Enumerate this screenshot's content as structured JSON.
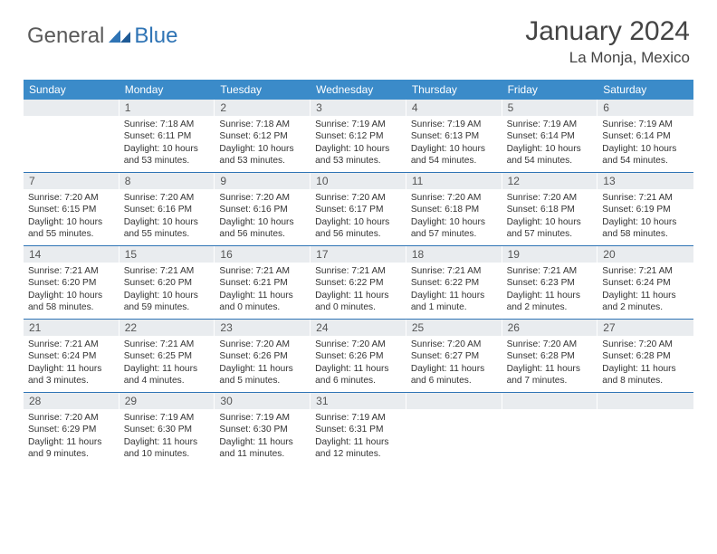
{
  "logo": {
    "part1": "General",
    "part2": "Blue"
  },
  "title": "January 2024",
  "location": "La Monja, Mexico",
  "headers": [
    "Sunday",
    "Monday",
    "Tuesday",
    "Wednesday",
    "Thursday",
    "Friday",
    "Saturday"
  ],
  "colors": {
    "header_bg": "#3b8bc9",
    "header_text": "#ffffff",
    "daynum_bg": "#e9ecef",
    "row_border": "#2f74b5",
    "logo_gray": "#5a5a5a",
    "logo_blue": "#2f74b5"
  },
  "weeks": [
    [
      {
        "n": "",
        "sr": "",
        "ss": "",
        "dl": ""
      },
      {
        "n": "1",
        "sr": "Sunrise: 7:18 AM",
        "ss": "Sunset: 6:11 PM",
        "dl": "Daylight: 10 hours and 53 minutes."
      },
      {
        "n": "2",
        "sr": "Sunrise: 7:18 AM",
        "ss": "Sunset: 6:12 PM",
        "dl": "Daylight: 10 hours and 53 minutes."
      },
      {
        "n": "3",
        "sr": "Sunrise: 7:19 AM",
        "ss": "Sunset: 6:12 PM",
        "dl": "Daylight: 10 hours and 53 minutes."
      },
      {
        "n": "4",
        "sr": "Sunrise: 7:19 AM",
        "ss": "Sunset: 6:13 PM",
        "dl": "Daylight: 10 hours and 54 minutes."
      },
      {
        "n": "5",
        "sr": "Sunrise: 7:19 AM",
        "ss": "Sunset: 6:14 PM",
        "dl": "Daylight: 10 hours and 54 minutes."
      },
      {
        "n": "6",
        "sr": "Sunrise: 7:19 AM",
        "ss": "Sunset: 6:14 PM",
        "dl": "Daylight: 10 hours and 54 minutes."
      }
    ],
    [
      {
        "n": "7",
        "sr": "Sunrise: 7:20 AM",
        "ss": "Sunset: 6:15 PM",
        "dl": "Daylight: 10 hours and 55 minutes."
      },
      {
        "n": "8",
        "sr": "Sunrise: 7:20 AM",
        "ss": "Sunset: 6:16 PM",
        "dl": "Daylight: 10 hours and 55 minutes."
      },
      {
        "n": "9",
        "sr": "Sunrise: 7:20 AM",
        "ss": "Sunset: 6:16 PM",
        "dl": "Daylight: 10 hours and 56 minutes."
      },
      {
        "n": "10",
        "sr": "Sunrise: 7:20 AM",
        "ss": "Sunset: 6:17 PM",
        "dl": "Daylight: 10 hours and 56 minutes."
      },
      {
        "n": "11",
        "sr": "Sunrise: 7:20 AM",
        "ss": "Sunset: 6:18 PM",
        "dl": "Daylight: 10 hours and 57 minutes."
      },
      {
        "n": "12",
        "sr": "Sunrise: 7:20 AM",
        "ss": "Sunset: 6:18 PM",
        "dl": "Daylight: 10 hours and 57 minutes."
      },
      {
        "n": "13",
        "sr": "Sunrise: 7:21 AM",
        "ss": "Sunset: 6:19 PM",
        "dl": "Daylight: 10 hours and 58 minutes."
      }
    ],
    [
      {
        "n": "14",
        "sr": "Sunrise: 7:21 AM",
        "ss": "Sunset: 6:20 PM",
        "dl": "Daylight: 10 hours and 58 minutes."
      },
      {
        "n": "15",
        "sr": "Sunrise: 7:21 AM",
        "ss": "Sunset: 6:20 PM",
        "dl": "Daylight: 10 hours and 59 minutes."
      },
      {
        "n": "16",
        "sr": "Sunrise: 7:21 AM",
        "ss": "Sunset: 6:21 PM",
        "dl": "Daylight: 11 hours and 0 minutes."
      },
      {
        "n": "17",
        "sr": "Sunrise: 7:21 AM",
        "ss": "Sunset: 6:22 PM",
        "dl": "Daylight: 11 hours and 0 minutes."
      },
      {
        "n": "18",
        "sr": "Sunrise: 7:21 AM",
        "ss": "Sunset: 6:22 PM",
        "dl": "Daylight: 11 hours and 1 minute."
      },
      {
        "n": "19",
        "sr": "Sunrise: 7:21 AM",
        "ss": "Sunset: 6:23 PM",
        "dl": "Daylight: 11 hours and 2 minutes."
      },
      {
        "n": "20",
        "sr": "Sunrise: 7:21 AM",
        "ss": "Sunset: 6:24 PM",
        "dl": "Daylight: 11 hours and 2 minutes."
      }
    ],
    [
      {
        "n": "21",
        "sr": "Sunrise: 7:21 AM",
        "ss": "Sunset: 6:24 PM",
        "dl": "Daylight: 11 hours and 3 minutes."
      },
      {
        "n": "22",
        "sr": "Sunrise: 7:21 AM",
        "ss": "Sunset: 6:25 PM",
        "dl": "Daylight: 11 hours and 4 minutes."
      },
      {
        "n": "23",
        "sr": "Sunrise: 7:20 AM",
        "ss": "Sunset: 6:26 PM",
        "dl": "Daylight: 11 hours and 5 minutes."
      },
      {
        "n": "24",
        "sr": "Sunrise: 7:20 AM",
        "ss": "Sunset: 6:26 PM",
        "dl": "Daylight: 11 hours and 6 minutes."
      },
      {
        "n": "25",
        "sr": "Sunrise: 7:20 AM",
        "ss": "Sunset: 6:27 PM",
        "dl": "Daylight: 11 hours and 6 minutes."
      },
      {
        "n": "26",
        "sr": "Sunrise: 7:20 AM",
        "ss": "Sunset: 6:28 PM",
        "dl": "Daylight: 11 hours and 7 minutes."
      },
      {
        "n": "27",
        "sr": "Sunrise: 7:20 AM",
        "ss": "Sunset: 6:28 PM",
        "dl": "Daylight: 11 hours and 8 minutes."
      }
    ],
    [
      {
        "n": "28",
        "sr": "Sunrise: 7:20 AM",
        "ss": "Sunset: 6:29 PM",
        "dl": "Daylight: 11 hours and 9 minutes."
      },
      {
        "n": "29",
        "sr": "Sunrise: 7:19 AM",
        "ss": "Sunset: 6:30 PM",
        "dl": "Daylight: 11 hours and 10 minutes."
      },
      {
        "n": "30",
        "sr": "Sunrise: 7:19 AM",
        "ss": "Sunset: 6:30 PM",
        "dl": "Daylight: 11 hours and 11 minutes."
      },
      {
        "n": "31",
        "sr": "Sunrise: 7:19 AM",
        "ss": "Sunset: 6:31 PM",
        "dl": "Daylight: 11 hours and 12 minutes."
      },
      {
        "n": "",
        "sr": "",
        "ss": "",
        "dl": ""
      },
      {
        "n": "",
        "sr": "",
        "ss": "",
        "dl": ""
      },
      {
        "n": "",
        "sr": "",
        "ss": "",
        "dl": ""
      }
    ]
  ]
}
